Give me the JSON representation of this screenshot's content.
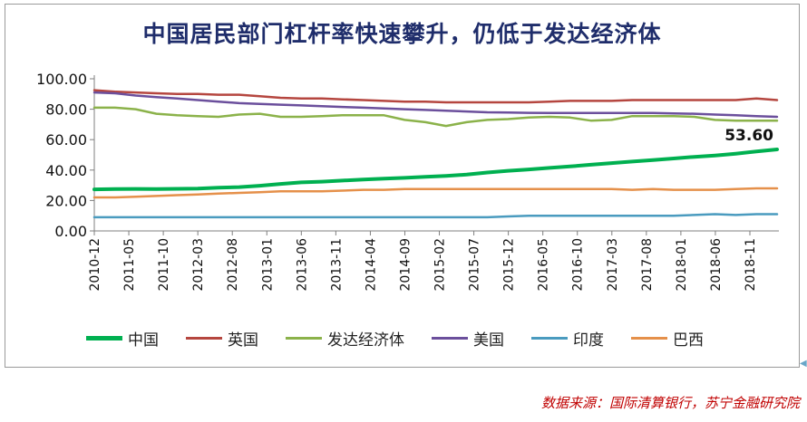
{
  "chart_data": {
    "type": "line",
    "title": "中国居民部门杠杆率快速攀升，仍低于发达经济体",
    "xlabel": "",
    "ylabel": "",
    "ylim": [
      0,
      100
    ],
    "yticks": [
      "0.00",
      "20.00",
      "40.00",
      "60.00",
      "80.00",
      "100.00"
    ],
    "xticklabels": [
      "2010-12",
      "2011-05",
      "2011-10",
      "2012-03",
      "2012-08",
      "2013-01",
      "2013-06",
      "2013-11",
      "2014-04",
      "2014-09",
      "2015-02",
      "2015-07",
      "2015-12",
      "2016-05",
      "2016-10",
      "2017-03",
      "2017-08",
      "2018-01",
      "2018-06",
      "2018-11"
    ],
    "x": [
      "2010-12",
      "2011-03",
      "2011-06",
      "2011-09",
      "2011-12",
      "2012-03",
      "2012-06",
      "2012-09",
      "2012-12",
      "2013-03",
      "2013-06",
      "2013-09",
      "2013-12",
      "2014-03",
      "2014-06",
      "2014-09",
      "2014-12",
      "2015-03",
      "2015-06",
      "2015-09",
      "2015-12",
      "2016-03",
      "2016-06",
      "2016-09",
      "2016-12",
      "2017-03",
      "2017-06",
      "2017-09",
      "2017-12",
      "2018-03",
      "2018-06",
      "2018-09",
      "2018-12",
      "2019-03"
    ],
    "legend_position": "bottom",
    "grid": false,
    "series": [
      {
        "name": "中国",
        "color": "#00b050",
        "width": 4,
        "values": [
          27.3,
          27.5,
          27.6,
          27.5,
          27.7,
          27.8,
          28.4,
          28.8,
          29.7,
          30.9,
          31.9,
          32.4,
          33.1,
          33.8,
          34.4,
          34.9,
          35.6,
          36.2,
          37.0,
          38.4,
          39.5,
          40.4,
          41.4,
          42.4,
          43.5,
          44.6,
          45.6,
          46.6,
          47.6,
          48.7,
          49.6,
          50.8,
          52.2,
          53.6
        ]
      },
      {
        "name": "英国",
        "color": "#b5463f",
        "width": 2.5,
        "values": [
          92.5,
          91.5,
          91.0,
          90.5,
          90.0,
          90.0,
          89.5,
          89.5,
          88.5,
          87.5,
          87.0,
          87.0,
          86.5,
          86.0,
          85.5,
          85.0,
          85.0,
          84.5,
          84.5,
          84.5,
          84.5,
          84.5,
          85.0,
          85.5,
          85.5,
          85.5,
          86.0,
          86.0,
          86.0,
          86.0,
          86.0,
          86.0,
          87.0,
          86.0
        ]
      },
      {
        "name": "发达经济体",
        "color": "#8bb24a",
        "width": 2.5,
        "values": [
          81.0,
          81.0,
          80.0,
          77.0,
          76.0,
          75.5,
          75.0,
          76.5,
          77.0,
          75.0,
          75.0,
          75.5,
          76.0,
          76.0,
          76.0,
          73.0,
          71.5,
          69.0,
          71.5,
          73.0,
          73.5,
          74.5,
          75.0,
          74.5,
          72.5,
          73.0,
          75.5,
          75.5,
          75.5,
          75.0,
          73.0,
          72.5,
          72.5,
          72.5
        ]
      },
      {
        "name": "美国",
        "color": "#6b4f9c",
        "width": 2.5,
        "values": [
          91.0,
          90.5,
          89.0,
          88.0,
          87.0,
          86.0,
          85.0,
          84.0,
          83.5,
          83.0,
          82.5,
          82.0,
          81.5,
          81.0,
          80.5,
          80.0,
          79.5,
          79.0,
          78.5,
          78.0,
          77.8,
          77.6,
          77.5,
          77.5,
          77.5,
          77.5,
          77.5,
          77.5,
          77.2,
          77.0,
          76.5,
          76.0,
          75.5,
          75.0
        ]
      },
      {
        "name": "印度",
        "color": "#4a9bbf",
        "width": 2.5,
        "values": [
          9.0,
          9.0,
          9.0,
          9.0,
          9.0,
          9.0,
          9.0,
          9.0,
          9.0,
          9.0,
          9.0,
          9.0,
          9.0,
          9.0,
          9.0,
          9.0,
          9.0,
          9.0,
          9.0,
          9.0,
          9.5,
          10.0,
          10.0,
          10.0,
          10.0,
          10.0,
          10.0,
          10.0,
          10.0,
          10.5,
          11.0,
          10.5,
          11.0,
          11.0
        ]
      },
      {
        "name": "巴西",
        "color": "#e5904a",
        "width": 2.5,
        "values": [
          22.0,
          22.0,
          22.5,
          23.0,
          23.5,
          24.0,
          24.5,
          25.0,
          25.5,
          26.0,
          26.0,
          26.0,
          26.5,
          27.0,
          27.0,
          27.5,
          27.5,
          27.5,
          27.5,
          27.5,
          27.5,
          27.5,
          27.5,
          27.5,
          27.5,
          27.5,
          27.0,
          27.5,
          27.0,
          27.0,
          27.0,
          27.5,
          28.0,
          28.0
        ]
      }
    ],
    "annotations": [
      {
        "series": "中国",
        "label": "53.60"
      }
    ]
  },
  "source_note": "数据来源：国际清算银行，苏宁金融研究院",
  "edge_marker": "◀"
}
